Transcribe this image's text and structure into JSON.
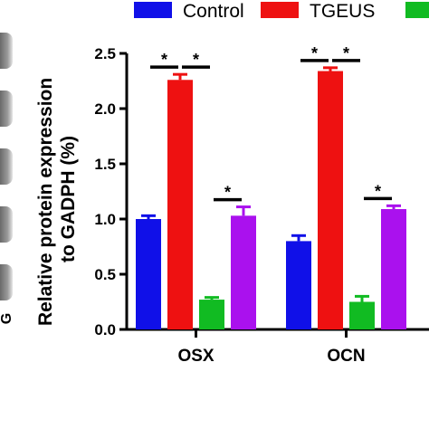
{
  "chart_data": {
    "type": "bar",
    "categories": [
      "OSX",
      "OCN"
    ],
    "ylabel_line1": "Relative protein expression",
    "ylabel_line2": "to GADPH (%)",
    "ylim": [
      0,
      2.5
    ],
    "yticks": [
      0.0,
      0.5,
      1.0,
      1.5,
      2.0,
      2.5
    ],
    "ytick_labels": [
      "0.0",
      "0.5",
      "1.0",
      "1.5",
      "2.0",
      "2.5"
    ],
    "series": [
      {
        "name": "Control",
        "color": "#1010e8",
        "values": [
          1.0,
          0.8
        ],
        "errors": [
          0.03,
          0.05
        ]
      },
      {
        "name": "TGEUS",
        "color": "#ee1111",
        "values": [
          2.26,
          2.34
        ],
        "errors": [
          0.05,
          0.03
        ]
      },
      {
        "name": "",
        "color": "#11bb22",
        "values": [
          0.27,
          0.25
        ],
        "errors": [
          0.02,
          0.05
        ]
      },
      {
        "name": "",
        "color": "#aa11ee",
        "values": [
          1.03,
          1.09
        ],
        "errors": [
          0.08,
          0.03
        ]
      }
    ],
    "significance": [
      {
        "category": 0,
        "from_series": 0,
        "to_series": 1,
        "label": "*"
      },
      {
        "category": 0,
        "from_series": 1,
        "to_series": 2,
        "label": "*"
      },
      {
        "category": 0,
        "from_series": 2,
        "to_series": 3,
        "label": "*"
      },
      {
        "category": 1,
        "from_series": 0,
        "to_series": 1,
        "label": "*"
      },
      {
        "category": 1,
        "from_series": 1,
        "to_series": 2,
        "label": "*"
      },
      {
        "category": 1,
        "from_series": 2,
        "to_series": 3,
        "label": "*"
      }
    ],
    "legend_placement": "top",
    "grid": false
  },
  "left_edge_label": "G"
}
